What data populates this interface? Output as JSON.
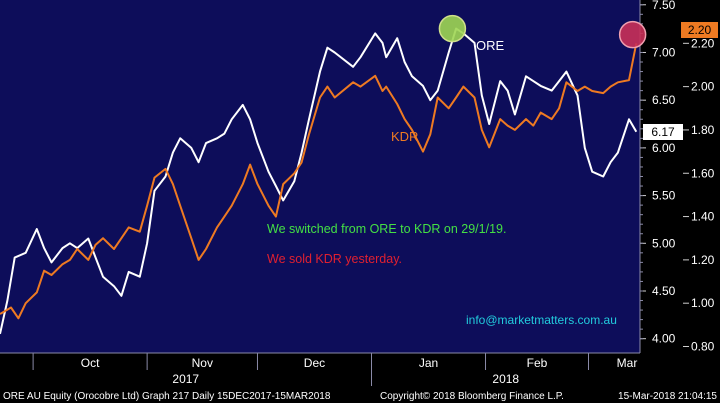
{
  "chart_data": {
    "type": "line",
    "title": "",
    "x_axis": {
      "months": [
        "Oct",
        "Nov",
        "Dec",
        "Jan",
        "Feb",
        "Mar"
      ],
      "years": [
        "2017",
        "2018"
      ],
      "range": [
        "2017-09-22",
        "2018-03-15"
      ]
    },
    "y_left": {
      "ticks": [
        "4.00",
        "4.50",
        "5.00",
        "5.50",
        "6.00",
        "6.50",
        "7.00",
        "7.50"
      ],
      "range": [
        3.85,
        7.55
      ]
    },
    "y_right": {
      "ticks": [
        "0.80",
        "1.00",
        "1.20",
        "1.40",
        "1.60",
        "1.80",
        "2.00",
        "2.20"
      ],
      "range": [
        0.77,
        2.4
      ]
    },
    "grid": false,
    "series": [
      {
        "name": "ORE",
        "axis": "left",
        "color": "#ffffff",
        "last_value": "6.17",
        "points": [
          [
            "2017-09-22",
            4.05
          ],
          [
            "2017-09-24",
            4.4
          ],
          [
            "2017-09-26",
            4.85
          ],
          [
            "2017-09-29",
            4.9
          ],
          [
            "2017-10-02",
            5.15
          ],
          [
            "2017-10-04",
            4.95
          ],
          [
            "2017-10-06",
            4.8
          ],
          [
            "2017-10-09",
            4.95
          ],
          [
            "2017-10-11",
            5.0
          ],
          [
            "2017-10-13",
            4.95
          ],
          [
            "2017-10-16",
            5.05
          ],
          [
            "2017-10-18",
            4.85
          ],
          [
            "2017-10-20",
            4.65
          ],
          [
            "2017-10-23",
            4.55
          ],
          [
            "2017-10-25",
            4.45
          ],
          [
            "2017-10-27",
            4.7
          ],
          [
            "2017-10-30",
            4.65
          ],
          [
            "2017-11-01",
            5.0
          ],
          [
            "2017-11-03",
            5.55
          ],
          [
            "2017-11-06",
            5.7
          ],
          [
            "2017-11-08",
            5.95
          ],
          [
            "2017-11-10",
            6.1
          ],
          [
            "2017-11-13",
            6.0
          ],
          [
            "2017-11-15",
            5.85
          ],
          [
            "2017-11-17",
            6.05
          ],
          [
            "2017-11-20",
            6.1
          ],
          [
            "2017-11-22",
            6.15
          ],
          [
            "2017-11-24",
            6.3
          ],
          [
            "2017-11-27",
            6.45
          ],
          [
            "2017-11-29",
            6.3
          ],
          [
            "2017-12-01",
            6.05
          ],
          [
            "2017-12-04",
            5.75
          ],
          [
            "2017-12-06",
            5.6
          ],
          [
            "2017-12-08",
            5.45
          ],
          [
            "2017-12-11",
            5.65
          ],
          [
            "2017-12-13",
            5.95
          ],
          [
            "2017-12-15",
            6.3
          ],
          [
            "2017-12-18",
            6.8
          ],
          [
            "2017-12-20",
            7.05
          ],
          [
            "2017-12-22",
            7.0
          ],
          [
            "2017-12-27",
            6.85
          ],
          [
            "2017-12-29",
            6.95
          ],
          [
            "2018-01-02",
            7.2
          ],
          [
            "2018-01-04",
            7.1
          ],
          [
            "2018-01-05",
            6.95
          ],
          [
            "2018-01-08",
            7.15
          ],
          [
            "2018-01-10",
            6.9
          ],
          [
            "2018-01-12",
            6.75
          ],
          [
            "2018-01-15",
            6.65
          ],
          [
            "2018-01-17",
            6.5
          ],
          [
            "2018-01-19",
            6.6
          ],
          [
            "2018-01-22",
            7.0
          ],
          [
            "2018-01-24",
            7.25
          ],
          [
            "2018-01-26",
            7.2
          ],
          [
            "2018-01-29",
            7.1
          ],
          [
            "2018-01-31",
            6.55
          ],
          [
            "2018-02-02",
            6.25
          ],
          [
            "2018-02-05",
            6.7
          ],
          [
            "2018-02-07",
            6.6
          ],
          [
            "2018-02-09",
            6.35
          ],
          [
            "2018-02-12",
            6.75
          ],
          [
            "2018-02-14",
            6.7
          ],
          [
            "2018-02-16",
            6.65
          ],
          [
            "2018-02-19",
            6.6
          ],
          [
            "2018-02-21",
            6.7
          ],
          [
            "2018-02-23",
            6.8
          ],
          [
            "2018-02-26",
            6.55
          ],
          [
            "2018-02-28",
            6.0
          ],
          [
            "2018-03-02",
            5.75
          ],
          [
            "2018-03-05",
            5.7
          ],
          [
            "2018-03-07",
            5.85
          ],
          [
            "2018-03-09",
            5.95
          ],
          [
            "2018-03-12",
            6.3
          ],
          [
            "2018-03-14",
            6.17
          ]
        ]
      },
      {
        "name": "KDR",
        "axis": "right",
        "color": "#ee7a22",
        "last_value": "2.20",
        "points": [
          [
            "2017-09-22",
            0.95
          ],
          [
            "2017-09-25",
            0.98
          ],
          [
            "2017-09-27",
            0.93
          ],
          [
            "2017-09-29",
            1.0
          ],
          [
            "2017-10-02",
            1.05
          ],
          [
            "2017-10-04",
            1.15
          ],
          [
            "2017-10-06",
            1.13
          ],
          [
            "2017-10-09",
            1.18
          ],
          [
            "2017-10-11",
            1.2
          ],
          [
            "2017-10-13",
            1.25
          ],
          [
            "2017-10-16",
            1.2
          ],
          [
            "2017-10-18",
            1.27
          ],
          [
            "2017-10-20",
            1.3
          ],
          [
            "2017-10-23",
            1.25
          ],
          [
            "2017-10-25",
            1.3
          ],
          [
            "2017-10-27",
            1.35
          ],
          [
            "2017-10-30",
            1.33
          ],
          [
            "2017-11-01",
            1.45
          ],
          [
            "2017-11-03",
            1.58
          ],
          [
            "2017-11-06",
            1.62
          ],
          [
            "2017-11-08",
            1.55
          ],
          [
            "2017-11-10",
            1.45
          ],
          [
            "2017-11-13",
            1.3
          ],
          [
            "2017-11-15",
            1.2
          ],
          [
            "2017-11-17",
            1.25
          ],
          [
            "2017-11-20",
            1.35
          ],
          [
            "2017-11-22",
            1.4
          ],
          [
            "2017-11-24",
            1.45
          ],
          [
            "2017-11-27",
            1.55
          ],
          [
            "2017-11-29",
            1.64
          ],
          [
            "2017-12-01",
            1.55
          ],
          [
            "2017-12-04",
            1.45
          ],
          [
            "2017-12-06",
            1.4
          ],
          [
            "2017-12-08",
            1.55
          ],
          [
            "2017-12-11",
            1.6
          ],
          [
            "2017-12-13",
            1.65
          ],
          [
            "2017-12-15",
            1.78
          ],
          [
            "2017-12-18",
            1.95
          ],
          [
            "2017-12-20",
            2.0
          ],
          [
            "2017-12-22",
            1.95
          ],
          [
            "2017-12-27",
            2.02
          ],
          [
            "2017-12-29",
            2.0
          ],
          [
            "2018-01-02",
            2.05
          ],
          [
            "2018-01-04",
            1.98
          ],
          [
            "2018-01-05",
            2.0
          ],
          [
            "2018-01-08",
            1.92
          ],
          [
            "2018-01-10",
            1.85
          ],
          [
            "2018-01-12",
            1.8
          ],
          [
            "2018-01-15",
            1.7
          ],
          [
            "2018-01-17",
            1.78
          ],
          [
            "2018-01-19",
            1.95
          ],
          [
            "2018-01-22",
            1.9
          ],
          [
            "2018-01-24",
            1.95
          ],
          [
            "2018-01-26",
            2.0
          ],
          [
            "2018-01-29",
            1.95
          ],
          [
            "2018-01-31",
            1.8
          ],
          [
            "2018-02-02",
            1.72
          ],
          [
            "2018-02-05",
            1.85
          ],
          [
            "2018-02-07",
            1.82
          ],
          [
            "2018-02-09",
            1.8
          ],
          [
            "2018-02-12",
            1.85
          ],
          [
            "2018-02-14",
            1.82
          ],
          [
            "2018-02-16",
            1.88
          ],
          [
            "2018-02-19",
            1.85
          ],
          [
            "2018-02-21",
            1.9
          ],
          [
            "2018-02-23",
            2.02
          ],
          [
            "2018-02-26",
            1.98
          ],
          [
            "2018-02-28",
            2.0
          ],
          [
            "2018-03-02",
            1.98
          ],
          [
            "2018-03-05",
            1.97
          ],
          [
            "2018-03-07",
            2.0
          ],
          [
            "2018-03-09",
            2.02
          ],
          [
            "2018-03-12",
            2.03
          ],
          [
            "2018-03-14",
            2.2
          ]
        ]
      }
    ],
    "annotations": [
      {
        "text": "We switched from ORE to KDR on 29/1/19.",
        "color": "#44e044"
      },
      {
        "text": "We sold KDR yesterday.",
        "color": "#e02030"
      },
      {
        "text": "info@marketmatters.com.au",
        "color": "#22ccdd"
      }
    ],
    "markers": [
      {
        "series": "ORE",
        "date": "2018-01-23",
        "value": 7.25,
        "fill": "#9fd653",
        "stroke": "#cfe08a"
      },
      {
        "series": "KDR",
        "date": "2018-03-13",
        "value": 2.24,
        "fill": "#c93058",
        "stroke": "#f0a0b0"
      }
    ]
  },
  "footer": {
    "left": "ORE AU Equity (Orocobre Ltd) Graph 217  Daily 15DEC2017-15MAR2018",
    "center": "Copyright© 2018 Bloomberg Finance L.P.",
    "right": "15-Mar-2018 21:04:15"
  }
}
